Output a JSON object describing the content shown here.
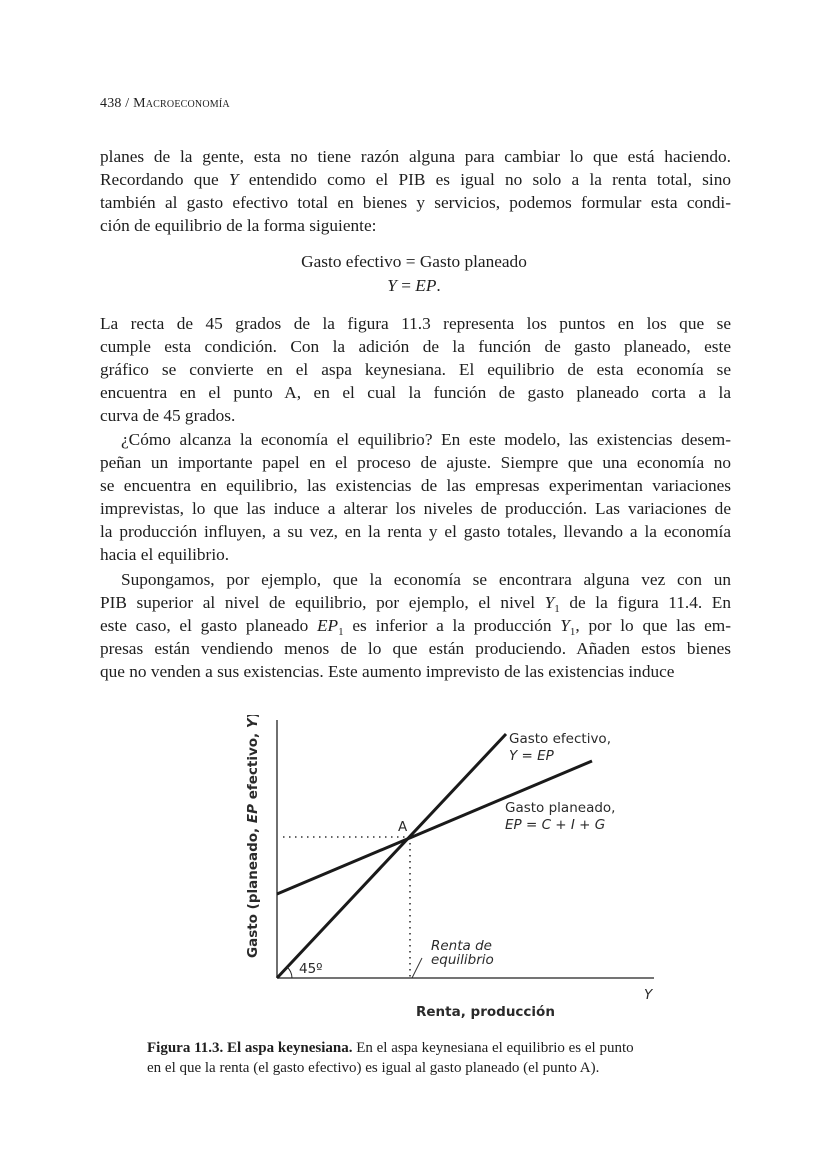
{
  "header": {
    "page_number": "438 /",
    "book_title": "Macroeconomía"
  },
  "paragraphs": [
    {
      "lines": [
        [
          {
            "t": "planes de la gente, esta no tiene razón alguna para cambiar lo que está haciendo."
          }
        ],
        [
          {
            "t": "Recordando que "
          },
          {
            "t": "Y",
            "i": true
          },
          {
            "t": " entendido como el PIB es igual no solo a la renta total, sino"
          }
        ],
        [
          {
            "t": "también al gasto efectivo total en bienes y servicios, podemos formular esta condi-"
          }
        ],
        [
          {
            "t": "ción de equilibrio de la forma siguiente:"
          }
        ]
      ]
    },
    {
      "lines": [
        [
          {
            "t": "La recta de 45 grados de la figura 11.3 representa los puntos en los que se"
          }
        ],
        [
          {
            "t": "cumple esta condición. Con la adición de la función de gasto planeado, este"
          }
        ],
        [
          {
            "t": "gráfico se convierte en el aspa keynesiana. El equilibrio de esta economía se"
          }
        ],
        [
          {
            "t": "encuentra en el punto A, en el cual la función de gasto planeado corta a la"
          }
        ],
        [
          {
            "t": "curva de 45 grados."
          }
        ]
      ]
    },
    {
      "lines": [
        [
          {
            "t": "¿Cómo alcanza la economía el equilibrio? En este modelo, las existencias desem-"
          }
        ],
        [
          {
            "t": "peñan un importante papel en el proceso de ajuste. Siempre que una economía no"
          }
        ],
        [
          {
            "t": "se encuentra en equilibrio, las existencias de las empresas experimentan variaciones"
          }
        ],
        [
          {
            "t": "imprevistas, lo que las induce a alterar los niveles de producción. Las variaciones de"
          }
        ],
        [
          {
            "t": "la producción influyen, a su vez, en la renta y el gasto totales, llevando a la economía"
          }
        ],
        [
          {
            "t": "hacia el equilibrio."
          }
        ]
      ]
    },
    {
      "lines": [
        [
          {
            "t": "Supongamos, por ejemplo, que la economía se encontrara alguna vez con un"
          }
        ],
        [
          {
            "t": "PIB superior al nivel de equilibrio, por ejemplo, el nivel "
          },
          {
            "t": "Y",
            "i": true
          },
          {
            "t": "1",
            "sub": true
          },
          {
            "t": " de la figura 11.4. En"
          }
        ],
        [
          {
            "t": "este caso, el gasto planeado "
          },
          {
            "t": "EP",
            "i": true
          },
          {
            "t": "1",
            "sub": true
          },
          {
            "t": " es inferior a la producción "
          },
          {
            "t": "Y",
            "i": true
          },
          {
            "t": "1",
            "sub": true
          },
          {
            "t": ", por lo que las em-"
          }
        ],
        [
          {
            "t": "presas están vendiendo menos de lo que están produciendo. Añaden estos bienes"
          }
        ],
        [
          {
            "t": "que no venden a sus existencias. Este aumento imprevisto de las existencias induce"
          }
        ]
      ]
    }
  ],
  "equation": {
    "line1": "Gasto efectivo = Gasto planeado",
    "line2_y": "Y",
    "line2_eq": " = ",
    "line2_ep": "EP",
    "line2_end": "."
  },
  "figure": {
    "y_axis_label": "Gasto (planeado, EP efectivo, Y)",
    "y_axis_label_parts": [
      "Gasto (planeado, ",
      "EP",
      " efectivo, ",
      "Y",
      ")"
    ],
    "x_axis_label": "Renta, producción",
    "x_axis_symbol": "Y",
    "angle_label": "45º",
    "point_label": "A",
    "actual_line_label": [
      "Gasto efectivo,",
      "Y = EP"
    ],
    "planned_line_label": [
      "Gasto planeado,",
      "EP = C + I + G"
    ],
    "equilibrium_label": [
      "Renta de",
      "equilibrio"
    ],
    "line_color": "#1a1a1a"
  },
  "caption": {
    "bold": "Figura 11.3. El aspa keynesiana.",
    "line1": " En el aspa keynesiana el equilibrio es el punto",
    "line2": "en el que la renta (el gasto efectivo) es igual al gasto planeado (el punto A)."
  }
}
